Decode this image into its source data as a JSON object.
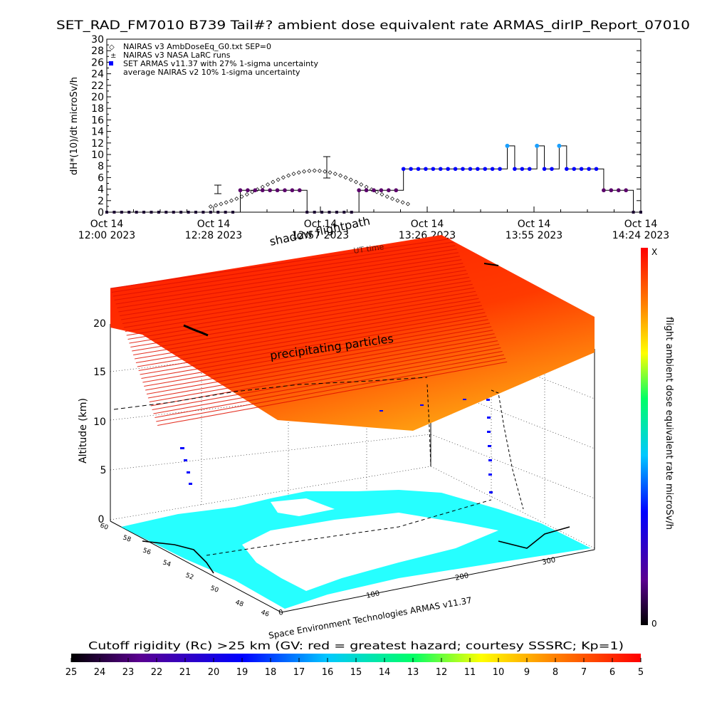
{
  "title": "SET_RAD_FM7010  B739 Tail#? ambient dose equivalent rate ARMAS_dirIP_Report_07010",
  "chart_data": [
    {
      "type": "line",
      "ylabel": "dH*(10)/dt microSv/h",
      "ylim": [
        0,
        30
      ],
      "yticks": [
        0,
        2,
        4,
        6,
        8,
        10,
        12,
        14,
        16,
        18,
        20,
        22,
        24,
        26,
        28,
        30
      ],
      "x_tick_labels": [
        {
          "date": "Oct 14",
          "time": "12:00",
          "year": "2023"
        },
        {
          "date": "Oct 14",
          "time": "12:28",
          "year": "2023"
        },
        {
          "date": "Oct 14",
          "time": "12:57",
          "year": "2023"
        },
        {
          "date": "Oct 14",
          "time": "13:26",
          "year": "2023"
        },
        {
          "date": "Oct 14",
          "time": "13:55",
          "year": "2023"
        },
        {
          "date": "Oct 14",
          "time": "14:24",
          "year": "2023"
        }
      ],
      "legend": [
        "NAIRAS v3 AmbDoseEq_G0.txt SEP=0",
        "NAIRAS v3 NASA LaRC runs",
        "SET ARMAS v11.37 with 27% 1-sigma uncertainty",
        "average NAIRAS v2 10% 1-sigma uncertainty"
      ],
      "legend_position": "top-left",
      "series": [
        {
          "name": "SET ARMAS v11.37 with 27% 1-sigma uncertainty",
          "x_minutes_after_1200": [
            0,
            2,
            4,
            6,
            8,
            10,
            12,
            14,
            16,
            18,
            20,
            22,
            24,
            26,
            28,
            30,
            32,
            34,
            36,
            38,
            40,
            42,
            44,
            46,
            48,
            50,
            52,
            54,
            56,
            58,
            60,
            62,
            64,
            66,
            68,
            70,
            72,
            74,
            76,
            78,
            80,
            82,
            84,
            86,
            88,
            90,
            92,
            94,
            96,
            98,
            100,
            102,
            104,
            106,
            108,
            110,
            112,
            114,
            116,
            118,
            120,
            122,
            124,
            126,
            128,
            130,
            132,
            134,
            136,
            138,
            140,
            142,
            144
          ],
          "y": [
            0,
            0,
            0,
            0,
            0,
            0,
            0,
            0,
            0,
            0,
            0,
            0,
            0,
            0,
            0,
            0,
            0,
            0,
            3.8,
            3.8,
            3.8,
            3.8,
            3.8,
            3.8,
            3.8,
            3.8,
            3.8,
            0,
            0,
            0,
            0,
            0,
            0,
            0,
            3.8,
            3.8,
            3.8,
            3.8,
            3.8,
            3.8,
            7.5,
            7.5,
            7.5,
            7.5,
            7.5,
            7.5,
            7.5,
            7.5,
            7.5,
            7.5,
            7.5,
            7.5,
            7.5,
            7.5,
            11.5,
            7.5,
            7.5,
            7.5,
            11.5,
            7.5,
            7.5,
            11.5,
            7.5,
            7.5,
            7.5,
            7.5,
            7.5,
            3.8,
            3.8,
            3.8,
            3.8,
            0,
            0
          ]
        }
      ]
    },
    {
      "type": "scatter",
      "title": "shadow flightpath",
      "subtitle": "UT time",
      "zlabel": "Altitude (km)",
      "zticks": [
        "0",
        "5",
        "10",
        "15",
        "20"
      ],
      "lat_ticks": [
        "46",
        "48",
        "50",
        "52",
        "54",
        "56",
        "58",
        "60"
      ],
      "lon_ticks": [
        "0",
        "100",
        "200",
        "300"
      ],
      "annotation": "precipitating particles",
      "footer": "Space Environment Technologies ARMAS v11.37",
      "colorbar": {
        "label": "flight ambient dose equivalent rate microSv/h",
        "max_label": "X",
        "min_label": "0"
      }
    },
    {
      "type": "heatmap",
      "colorbar_title": "Cutoff rigidity (Rc) >25 km (GV: red = greatest hazard; courtesy SSSRC; Kp=1)",
      "ticks": [
        "25",
        "24",
        "23",
        "22",
        "21",
        "20",
        "19",
        "18",
        "17",
        "16",
        "15",
        "14",
        "13",
        "12",
        "11",
        "10",
        "9",
        "8",
        "7",
        "6",
        "5"
      ],
      "colors": [
        "#000000",
        "#4b0082",
        "#0000ff",
        "#00ffff",
        "#00ff00",
        "#ffff00",
        "#ff0000"
      ]
    }
  ]
}
